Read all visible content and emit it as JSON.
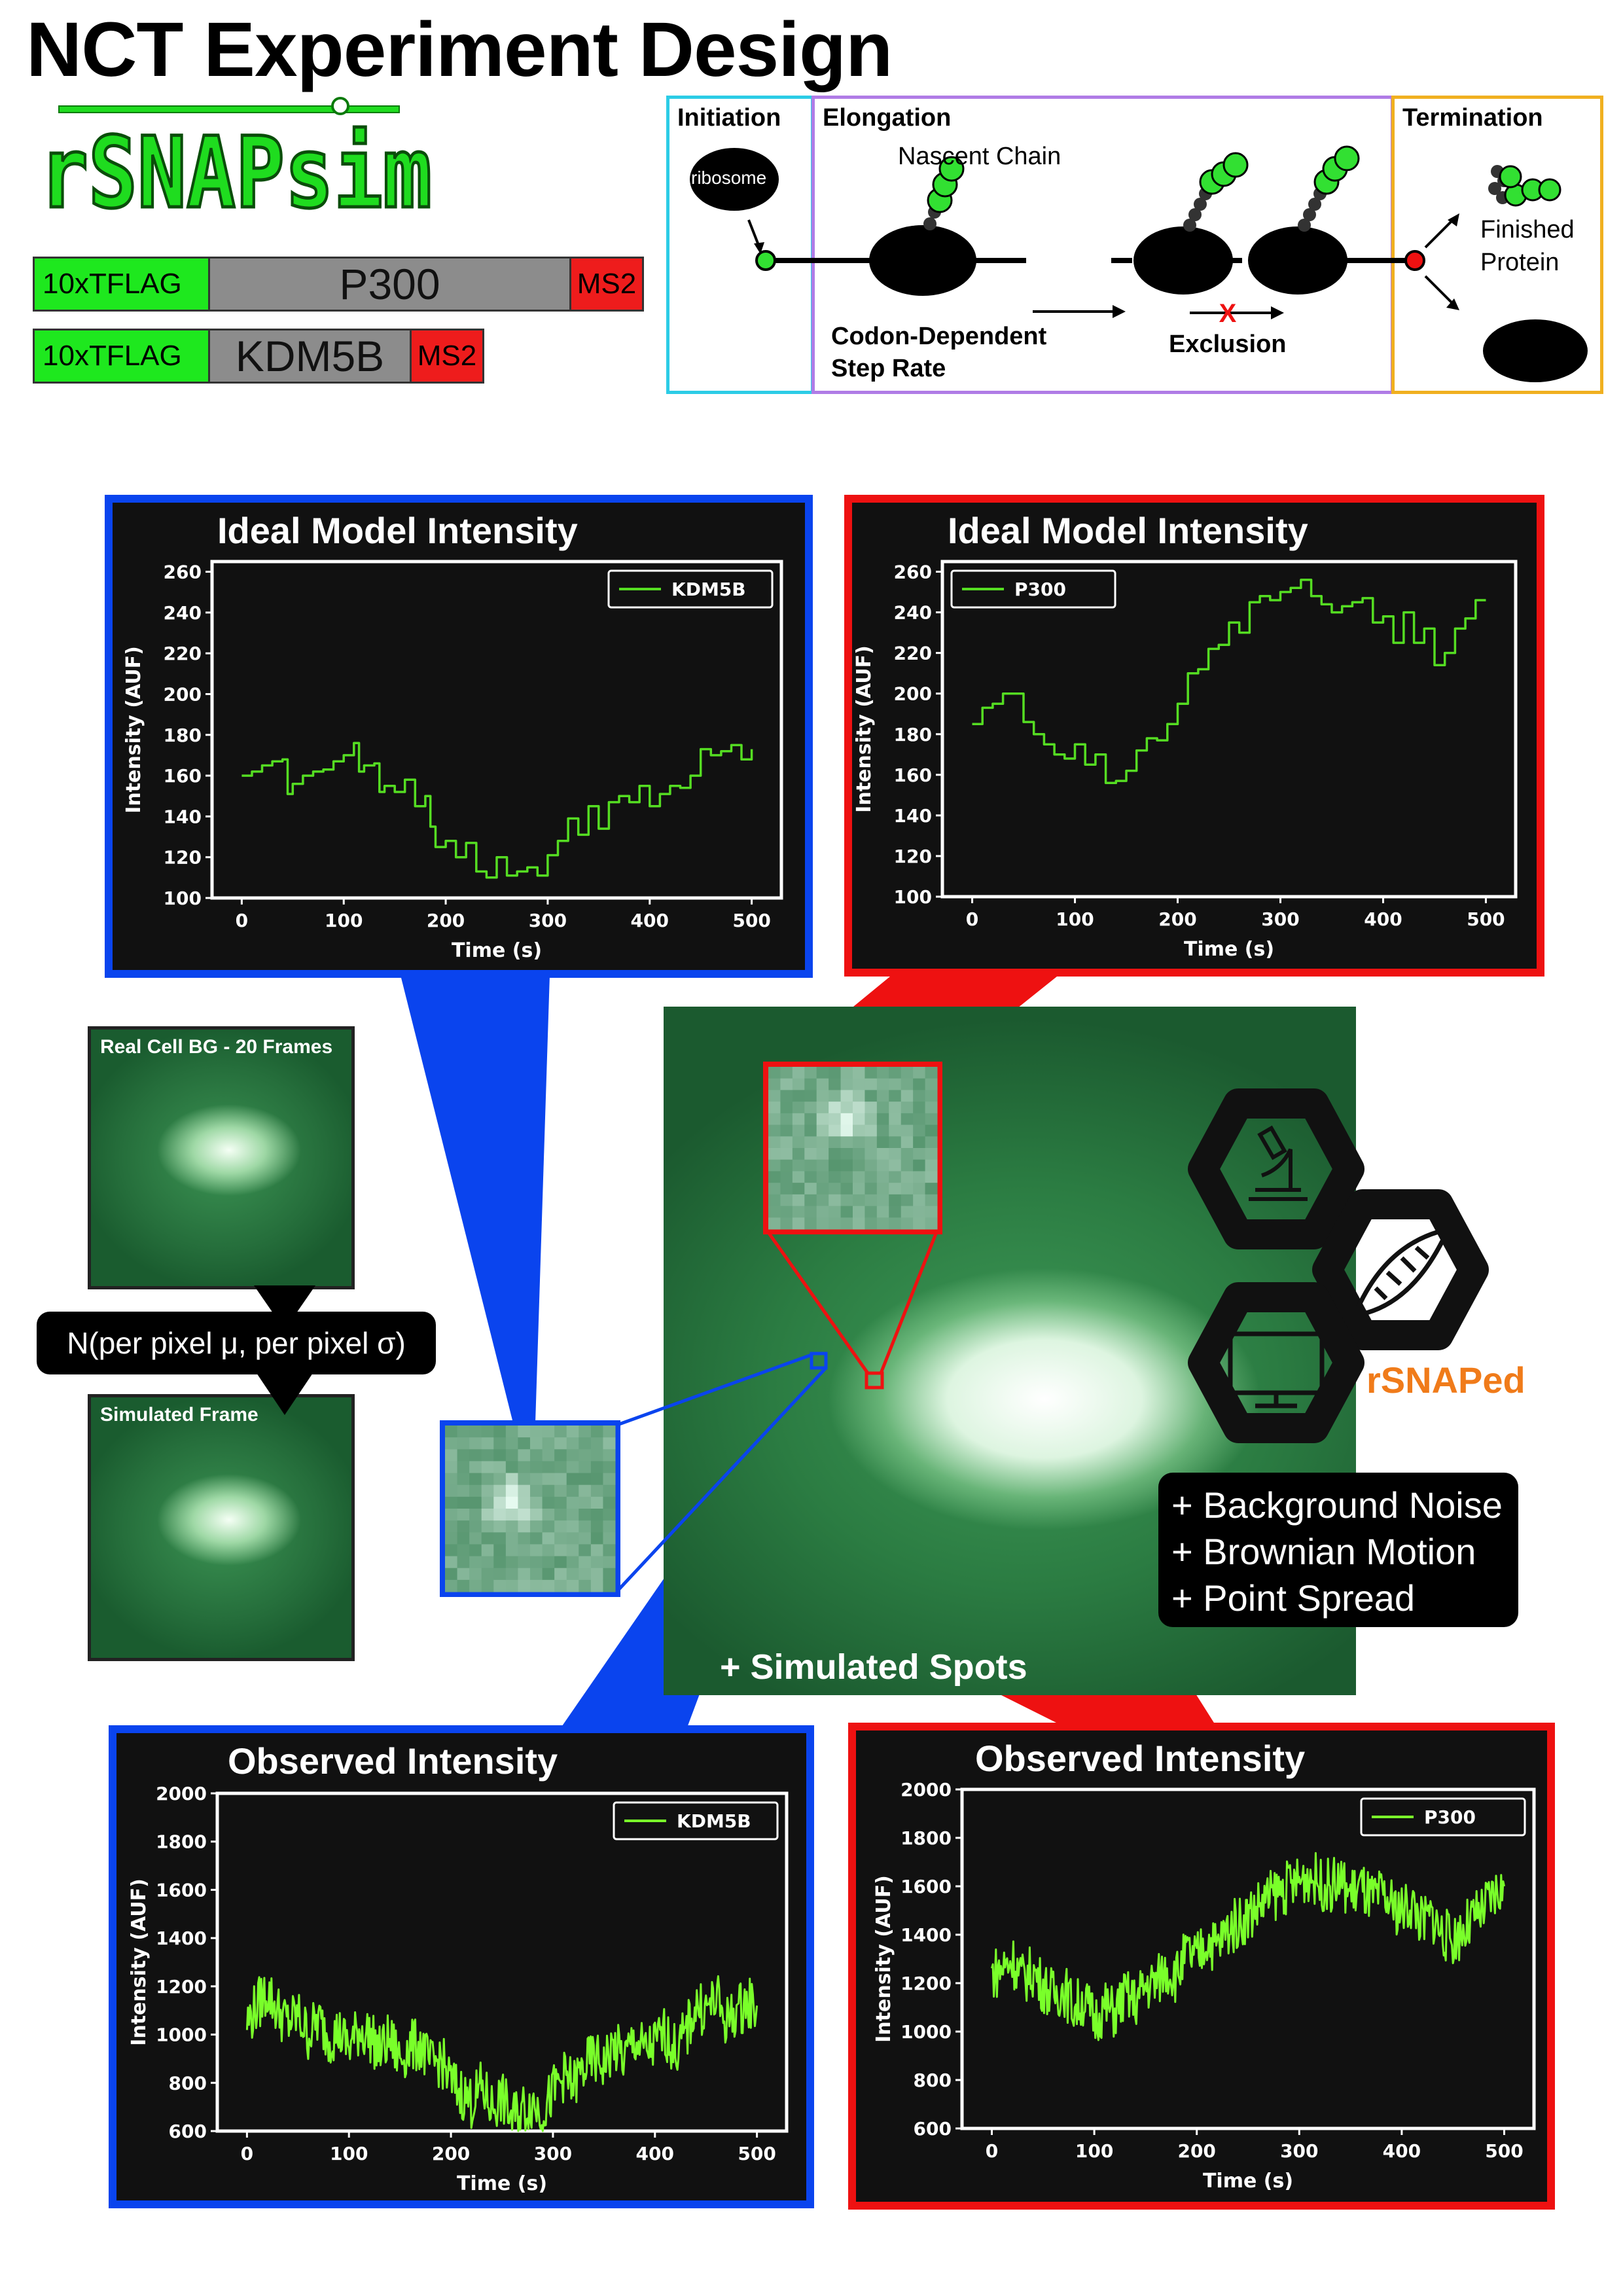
{
  "page_title": "NCT Experiment Design",
  "logo": "rSNAPsim",
  "constructs": [
    {
      "tag": "10xTFLAG",
      "gene": "P300",
      "end": "MS2"
    },
    {
      "tag": "10xTFLAG",
      "gene": "KDM5B",
      "end": "MS2"
    }
  ],
  "schematic": {
    "initiation": {
      "label": "Initiation",
      "ribosome": "ribosome"
    },
    "elongation": {
      "label": "Elongation",
      "nascent": "Nascent Chain",
      "rate": "Codon-Dependent Step Rate",
      "exclusion": "Exclusion"
    },
    "termination": {
      "label": "Termination",
      "product": "Finished Protein"
    }
  },
  "colors": {
    "blue": "#0a44ee",
    "red": "#ee1111",
    "cyan": "#2ccce6",
    "purple": "#b07ce6",
    "gold": "#f0b020",
    "trace": "#55dd22",
    "trace_obs": "#7aff2a",
    "orange": "#f07b1a"
  },
  "left": {
    "real_label": "Real Cell BG -  20 Frames",
    "noise_model": "N(per pixel μ, per pixel σ)",
    "sim_label": "Simulated Frame"
  },
  "center": {
    "spots_label": "+ Simulated Spots",
    "effects": [
      "+ Background Noise",
      "+ Brownian Motion",
      "+ Point Spread"
    ],
    "software": "rSNAPed",
    "hex_icons": [
      "microscope-icon",
      "dna-icon",
      "monitor-icon"
    ]
  },
  "chart_data": [
    {
      "id": "ideal-kdm5b",
      "type": "line",
      "title": "Ideal Model Intensity",
      "xlabel": "Time (s)",
      "ylabel": "Intensity (AUF)",
      "xlim": [
        -15,
        515
      ],
      "ylim": [
        100,
        265
      ],
      "xticks": [
        0,
        100,
        200,
        300,
        400,
        500
      ],
      "yticks": [
        100,
        120,
        140,
        160,
        180,
        200,
        220,
        240,
        260
      ],
      "legend": "top-right",
      "series": [
        {
          "name": "KDM5B",
          "color": "#55dd22",
          "x": [
            0,
            10,
            20,
            30,
            40,
            45,
            50,
            60,
            70,
            80,
            90,
            100,
            110,
            115,
            120,
            130,
            135,
            140,
            150,
            160,
            170,
            180,
            185,
            190,
            200,
            210,
            220,
            230,
            240,
            250,
            260,
            270,
            280,
            290,
            300,
            310,
            320,
            330,
            340,
            350,
            360,
            370,
            380,
            390,
            400,
            410,
            420,
            430,
            440,
            450,
            460,
            470,
            480,
            490,
            500
          ],
          "y": [
            160,
            162,
            165,
            167,
            168,
            151,
            156,
            160,
            162,
            163,
            167,
            170,
            176,
            162,
            165,
            166,
            152,
            155,
            152,
            158,
            145,
            150,
            135,
            125,
            128,
            120,
            127,
            113,
            110,
            120,
            111,
            113,
            115,
            111,
            121,
            128,
            139,
            131,
            145,
            134,
            147,
            150,
            147,
            155,
            145,
            151,
            155,
            154,
            160,
            173,
            170,
            172,
            175,
            168,
            173
          ]
        }
      ]
    },
    {
      "id": "ideal-p300",
      "type": "line",
      "title": "Ideal Model Intensity",
      "xlabel": "Time (s)",
      "ylabel": "Intensity (AUF)",
      "xlim": [
        -15,
        515
      ],
      "ylim": [
        100,
        265
      ],
      "xticks": [
        0,
        100,
        200,
        300,
        400,
        500
      ],
      "yticks": [
        100,
        120,
        140,
        160,
        180,
        200,
        220,
        240,
        260
      ],
      "legend": "top-left",
      "series": [
        {
          "name": "P300",
          "color": "#55dd22",
          "x": [
            0,
            10,
            20,
            30,
            40,
            50,
            60,
            70,
            80,
            90,
            100,
            110,
            120,
            130,
            140,
            150,
            160,
            170,
            180,
            190,
            200,
            210,
            220,
            230,
            240,
            250,
            260,
            270,
            280,
            290,
            300,
            310,
            320,
            330,
            340,
            350,
            360,
            370,
            380,
            390,
            400,
            410,
            420,
            430,
            440,
            450,
            460,
            470,
            480,
            490,
            500
          ],
          "y": [
            185,
            193,
            195,
            200,
            200,
            186,
            180,
            175,
            170,
            168,
            175,
            165,
            170,
            156,
            157,
            162,
            172,
            178,
            177,
            185,
            195,
            210,
            212,
            222,
            224,
            235,
            230,
            245,
            248,
            246,
            250,
            252,
            256,
            248,
            244,
            240,
            243,
            245,
            247,
            235,
            238,
            225,
            240,
            225,
            232,
            214,
            220,
            232,
            237,
            246,
            246
          ]
        }
      ]
    },
    {
      "id": "obs-kdm5b",
      "type": "line",
      "title": "Observed Intensity",
      "xlabel": "Time (s)",
      "ylabel": "Intensity (AUF)",
      "xlim": [
        -15,
        515
      ],
      "ylim": [
        600,
        2000
      ],
      "xticks": [
        0,
        100,
        200,
        300,
        400,
        500
      ],
      "yticks": [
        600,
        800,
        1000,
        1200,
        1400,
        1600,
        1800,
        2000
      ],
      "legend": "top-right",
      "series": [
        {
          "name": "KDM5B",
          "color": "#7aff2a",
          "x": [
            0,
            10,
            20,
            30,
            40,
            50,
            60,
            70,
            80,
            90,
            100,
            110,
            120,
            130,
            140,
            150,
            160,
            170,
            180,
            190,
            200,
            210,
            220,
            230,
            240,
            250,
            260,
            270,
            280,
            290,
            300,
            310,
            320,
            330,
            340,
            350,
            360,
            370,
            380,
            390,
            400,
            410,
            420,
            430,
            440,
            450,
            460,
            470,
            480,
            490,
            500
          ],
          "y": [
            1050,
            1120,
            1180,
            1100,
            1050,
            1080,
            1000,
            1060,
            990,
            1010,
            950,
            1020,
            1000,
            930,
            980,
            900,
            950,
            960,
            870,
            900,
            800,
            760,
            720,
            780,
            700,
            740,
            650,
            690,
            720,
            680,
            760,
            830,
            790,
            860,
            900,
            880,
            950,
            900,
            980,
            930,
            960,
            1010,
            930,
            1000,
            1120,
            1100,
            1150,
            1050,
            1100,
            1130,
            1120
          ],
          "noise": 70
        }
      ]
    },
    {
      "id": "obs-p300",
      "type": "line",
      "title": "Observed Intensity",
      "xlabel": "Time (s)",
      "ylabel": "Intensity (AUF)",
      "xlim": [
        -15,
        515
      ],
      "ylim": [
        600,
        2000
      ],
      "xticks": [
        0,
        100,
        200,
        300,
        400,
        500
      ],
      "yticks": [
        600,
        800,
        1000,
        1200,
        1400,
        1600,
        1800,
        2000
      ],
      "legend": "top-right",
      "series": [
        {
          "name": "P300",
          "color": "#7aff2a",
          "x": [
            0,
            10,
            20,
            30,
            40,
            50,
            60,
            70,
            80,
            90,
            100,
            110,
            120,
            130,
            140,
            150,
            160,
            170,
            180,
            190,
            200,
            210,
            220,
            230,
            240,
            250,
            260,
            270,
            280,
            290,
            300,
            310,
            320,
            330,
            340,
            350,
            360,
            370,
            380,
            390,
            400,
            410,
            420,
            430,
            440,
            450,
            460,
            470,
            480,
            490,
            500
          ],
          "y": [
            1240,
            1260,
            1300,
            1220,
            1250,
            1190,
            1150,
            1180,
            1100,
            1130,
            1050,
            1100,
            1080,
            1150,
            1120,
            1190,
            1200,
            1260,
            1230,
            1320,
            1300,
            1380,
            1350,
            1420,
            1450,
            1480,
            1520,
            1550,
            1580,
            1600,
            1620,
            1650,
            1610,
            1600,
            1620,
            1570,
            1600,
            1540,
            1560,
            1520,
            1500,
            1530,
            1450,
            1480,
            1400,
            1380,
            1420,
            1460,
            1500,
            1560,
            1600
          ],
          "noise": 70
        }
      ]
    }
  ]
}
